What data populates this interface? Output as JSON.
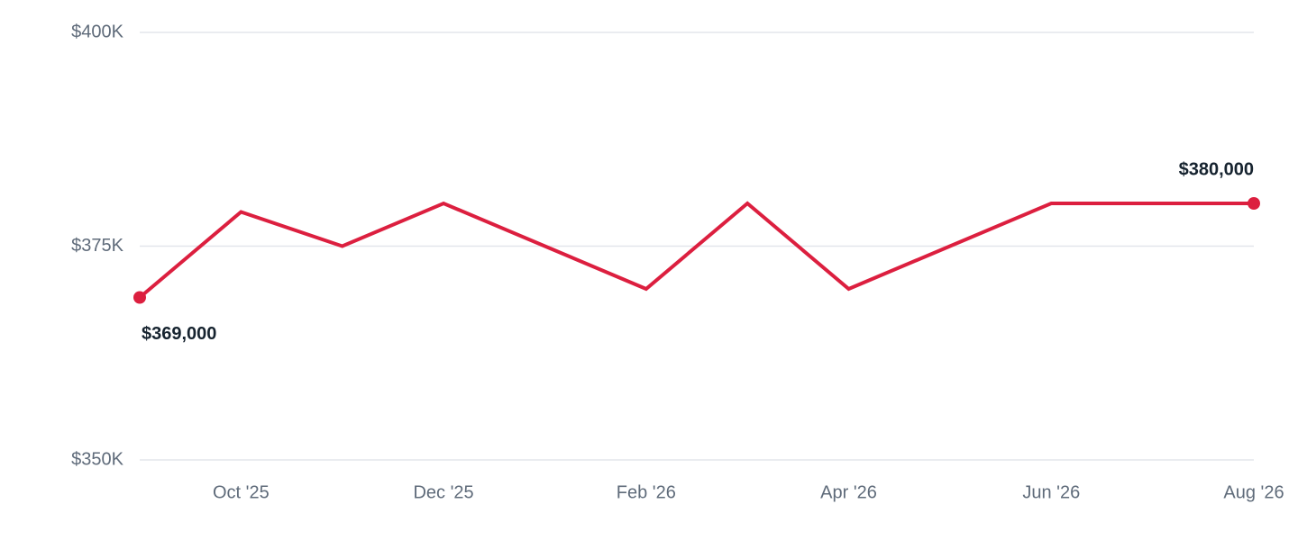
{
  "chart_data": {
    "type": "line",
    "categories": [
      null,
      "Oct '25",
      null,
      "Dec '25",
      null,
      "Feb '26",
      null,
      "Apr '26",
      null,
      "Jun '26",
      null,
      "Aug '26"
    ],
    "values": [
      369000,
      379000,
      375000,
      380000,
      375000,
      370000,
      380000,
      370000,
      375000,
      380000,
      380000,
      380000
    ],
    "value_labels": [
      "$369,000",
      null,
      null,
      null,
      null,
      null,
      null,
      null,
      null,
      null,
      null,
      "$380,000"
    ],
    "color": "#dc1f3f",
    "ylim": [
      350000,
      400000
    ],
    "yticks": [
      {
        "value": 350000,
        "label": "$350K"
      },
      {
        "value": 375000,
        "label": "$375K"
      },
      {
        "value": 400000,
        "label": "$400K"
      }
    ],
    "grid": true
  }
}
